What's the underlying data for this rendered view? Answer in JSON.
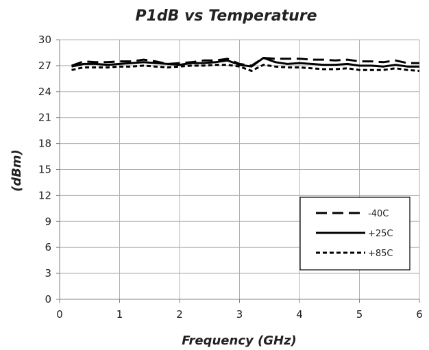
{
  "chart_data": {
    "type": "line",
    "title": "P1dB vs Temperature",
    "xlabel": "Frequency (GHz)",
    "ylabel": "(dBm)",
    "xlim": [
      0,
      6
    ],
    "ylim": [
      0,
      30
    ],
    "xticks": [
      0,
      1,
      2,
      3,
      4,
      5,
      6
    ],
    "yticks": [
      0,
      3,
      6,
      9,
      12,
      15,
      18,
      21,
      24,
      27,
      30
    ],
    "grid": true,
    "legend_position": "bottom-right",
    "series": [
      {
        "name": "-40C",
        "dash": "long-dash",
        "x": [
          0.2,
          0.4,
          0.6,
          0.8,
          1.0,
          1.2,
          1.4,
          1.6,
          1.8,
          2.0,
          2.2,
          2.4,
          2.6,
          2.8,
          3.0,
          3.2,
          3.4,
          3.6,
          3.8,
          4.0,
          4.2,
          4.4,
          4.6,
          4.8,
          5.0,
          5.2,
          5.4,
          5.6,
          5.8,
          6.0
        ],
        "values": [
          27.0,
          27.5,
          27.4,
          27.4,
          27.5,
          27.5,
          27.7,
          27.5,
          27.2,
          27.3,
          27.4,
          27.6,
          27.6,
          27.8,
          27.2,
          27.0,
          27.9,
          27.8,
          27.8,
          27.8,
          27.7,
          27.7,
          27.6,
          27.7,
          27.5,
          27.5,
          27.4,
          27.6,
          27.3,
          27.3
        ]
      },
      {
        "name": "+25C",
        "dash": "solid",
        "x": [
          0.2,
          0.4,
          0.6,
          0.8,
          1.0,
          1.2,
          1.4,
          1.6,
          1.8,
          2.0,
          2.2,
          2.4,
          2.6,
          2.8,
          3.0,
          3.2,
          3.4,
          3.6,
          3.8,
          4.0,
          4.2,
          4.4,
          4.6,
          4.8,
          5.0,
          5.2,
          5.4,
          5.6,
          5.8,
          6.0
        ],
        "values": [
          26.9,
          27.2,
          27.2,
          27.1,
          27.2,
          27.3,
          27.4,
          27.3,
          27.2,
          27.1,
          27.3,
          27.3,
          27.4,
          27.6,
          27.1,
          26.9,
          27.9,
          27.4,
          27.2,
          27.3,
          27.2,
          27.1,
          27.1,
          27.2,
          27.0,
          27.0,
          26.9,
          27.1,
          26.9,
          26.9
        ]
      },
      {
        "name": "+85C",
        "dash": "short-dash",
        "x": [
          0.2,
          0.4,
          0.6,
          0.8,
          1.0,
          1.2,
          1.4,
          1.6,
          1.8,
          2.0,
          2.2,
          2.4,
          2.6,
          2.8,
          3.0,
          3.2,
          3.4,
          3.6,
          3.8,
          4.0,
          4.2,
          4.4,
          4.6,
          4.8,
          5.0,
          5.2,
          5.4,
          5.6,
          5.8,
          6.0
        ],
        "values": [
          26.5,
          26.8,
          26.8,
          26.8,
          26.9,
          26.9,
          27.0,
          26.9,
          26.8,
          26.9,
          27.0,
          27.0,
          27.1,
          27.1,
          26.9,
          26.4,
          27.1,
          26.9,
          26.8,
          26.8,
          26.7,
          26.6,
          26.6,
          26.7,
          26.5,
          26.5,
          26.5,
          26.7,
          26.5,
          26.4
        ]
      }
    ]
  }
}
